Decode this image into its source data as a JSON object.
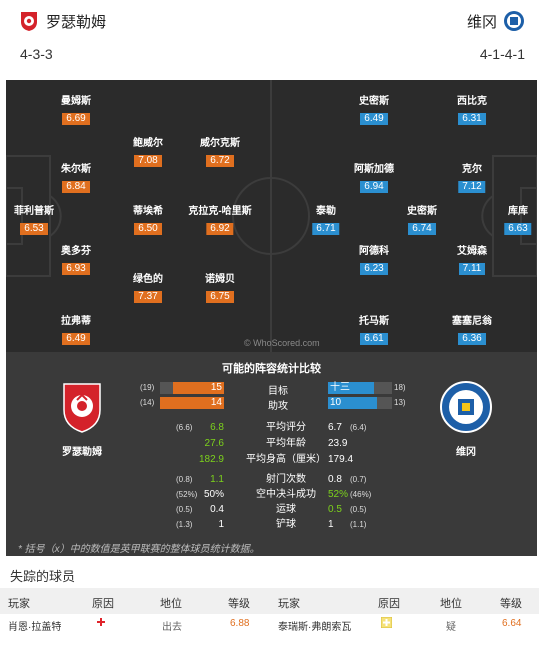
{
  "header": {
    "home_team": "罗瑟勒姆",
    "away_team": "维冈",
    "home_formation": "4-3-3",
    "away_formation": "4-1-4-1"
  },
  "colors": {
    "home": "#e06f1f",
    "away": "#2b8fd0",
    "pitch": "#2b2b2b",
    "stats_bg": "#3a3a3a",
    "highlight": "#7cd11c"
  },
  "home_players": [
    {
      "name": "曼姆斯",
      "rating": "6.69"
    },
    {
      "name": "朱尔斯",
      "rating": "6.84"
    },
    {
      "name": "菲利普斯",
      "rating": "6.53"
    },
    {
      "name": "奥多芬",
      "rating": "6.93"
    },
    {
      "name": "拉弗蒂",
      "rating": "6.49"
    },
    {
      "name": "鲍威尔",
      "rating": "7.08"
    },
    {
      "name": "威尔克斯",
      "rating": "6.72"
    },
    {
      "name": "蒂埃希",
      "rating": "6.50"
    },
    {
      "name": "克拉克-哈里斯",
      "rating": "6.92"
    },
    {
      "name": "绿色的",
      "rating": "7.37"
    },
    {
      "name": "诺姆贝",
      "rating": "6.75"
    }
  ],
  "away_players": [
    {
      "name": "史密斯",
      "rating": "6.49"
    },
    {
      "name": "西比克",
      "rating": "6.31"
    },
    {
      "name": "阿斯加德",
      "rating": "6.94"
    },
    {
      "name": "克尔",
      "rating": "7.12"
    },
    {
      "name": "泰勒",
      "rating": "6.71"
    },
    {
      "name": "史密斯",
      "rating": "6.74"
    },
    {
      "name": "库库",
      "rating": "6.63"
    },
    {
      "name": "阿德科",
      "rating": "6.23"
    },
    {
      "name": "艾姆森",
      "rating": "7.11"
    },
    {
      "name": "托马斯",
      "rating": "6.61"
    },
    {
      "name": "塞塞尼翁",
      "rating": "6.36"
    }
  ],
  "watermark": "© WhoScored.com",
  "stats": {
    "title": "可能的阵容统计比较",
    "home_club": "罗瑟勒姆",
    "away_club": "维冈",
    "bars": [
      {
        "label": "目标",
        "home_league": "(19)",
        "home": "15",
        "away": "十三",
        "away_league": "18)",
        "home_frac": 0.79,
        "away_frac": 0.72
      },
      {
        "label": "助攻",
        "home_league": "(14)",
        "home": "14",
        "away": "10",
        "away_league": "13)",
        "home_frac": 1.0,
        "away_frac": 0.77
      }
    ],
    "rows": [
      {
        "label": "平均评分",
        "home_league": "(6.6)",
        "home": "6.8",
        "away": "6.7",
        "away_league": "(6.4)",
        "home_green": true,
        "away_green": false
      },
      {
        "label": "平均年龄",
        "home_league": "",
        "home": "27.6",
        "away": "23.9",
        "away_league": "",
        "home_green": true,
        "away_green": false
      },
      {
        "label": "平均身高（厘米）",
        "home_league": "",
        "home": "182.9",
        "away": "179.4",
        "away_league": "",
        "home_green": true,
        "away_green": false
      }
    ],
    "rows2": [
      {
        "label": "射门次数",
        "home_league": "(0.8)",
        "home": "1.1",
        "away": "0.8",
        "away_league": "(0.7)",
        "home_green": true,
        "away_green": false
      },
      {
        "label": "空中决斗成功",
        "home_league": "(52%)",
        "home": "50%",
        "away": "52%",
        "away_league": "(46%)",
        "home_green": false,
        "away_green": true
      },
      {
        "label": "运球",
        "home_league": "(0.5)",
        "home": "0.4",
        "away": "0.5",
        "away_league": "(0.5)",
        "home_green": false,
        "away_green": true
      },
      {
        "label": "铲球",
        "home_league": "(1.3)",
        "home": "1",
        "away": "1",
        "away_league": "(1.1)",
        "home_green": false,
        "away_green": false
      }
    ],
    "footnote": "* 括号（x）中的数值是英甲联赛的整体球员统计数据。"
  },
  "missing": {
    "title": "失踪的球员",
    "headers": [
      "玩家",
      "原因",
      "地位",
      "等级",
      "玩家",
      "原因",
      "地位",
      "等级"
    ],
    "home": {
      "player": "肖恩·拉盖特",
      "status": "出去",
      "rating": "6.88"
    },
    "away": {
      "player": "泰瑞斯·弗朗索瓦",
      "status": "疑",
      "rating": "6.64"
    }
  }
}
